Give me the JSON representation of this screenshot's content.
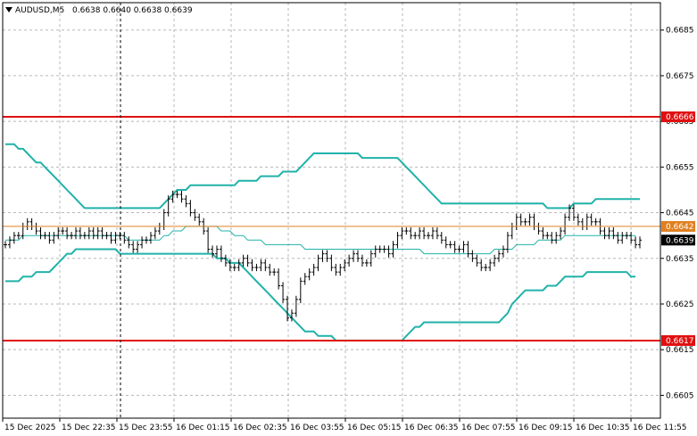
{
  "chart_data": {
    "type": "candlestick",
    "title": "AUDUSD,M5",
    "ohlc_header": "0.6638 0.6640 0.6638 0.6639",
    "y_ticks": [
      "0.6685",
      "0.6675",
      "0.6665",
      "0.6655",
      "0.6645",
      "0.6635",
      "0.6625",
      "0.6615",
      "0.6605"
    ],
    "y_tick_values": [
      0.6685,
      0.6675,
      0.6665,
      0.6655,
      0.6645,
      0.6635,
      0.6625,
      0.6615,
      0.6605
    ],
    "x_ticks": [
      "15 Dec 2025",
      "15 Dec 22:35",
      "15 Dec 23:55",
      "16 Dec 01:15",
      "16 Dec 02:35",
      "16 Dec 03:55",
      "16 Dec 05:15",
      "16 Dec 06:35",
      "16 Dec 07:55",
      "16 Dec 09:15",
      "16 Dec 10:35",
      "16 Dec 11:55"
    ],
    "ylim": [
      0.66,
      0.6691
    ],
    "grid": true,
    "levels": [
      {
        "label": "0.6666",
        "value": 0.6666,
        "color": "#e01010"
      },
      {
        "label": "0.6617",
        "value": 0.6617,
        "color": "#e01010"
      },
      {
        "label": "0.6642",
        "value": 0.6642,
        "color": "#e08020"
      }
    ],
    "current_price": {
      "label": "0.6639",
      "value": 0.6639
    },
    "colors": {
      "candles": "#000000",
      "bands": "#20b2aa",
      "support_resistance": "#e01010",
      "price_line": "#e08020"
    },
    "candles_close": [
      0.6638,
      0.6639,
      0.664,
      0.664,
      0.6642,
      0.6643,
      0.6642,
      0.6641,
      0.664,
      0.664,
      0.6639,
      0.664,
      0.6641,
      0.6641,
      0.664,
      0.664,
      0.6641,
      0.664,
      0.664,
      0.6641,
      0.664,
      0.6641,
      0.664,
      0.664,
      0.6639,
      0.664,
      0.664,
      0.6639,
      0.6638,
      0.6637,
      0.6638,
      0.6639,
      0.6639,
      0.664,
      0.6641,
      0.6642,
      0.6645,
      0.6648,
      0.6649,
      0.6649,
      0.6648,
      0.6647,
      0.6645,
      0.6644,
      0.6643,
      0.6641,
      0.6637,
      0.6636,
      0.6637,
      0.6635,
      0.6634,
      0.6633,
      0.6633,
      0.6634,
      0.6635,
      0.6634,
      0.6633,
      0.6633,
      0.6634,
      0.6633,
      0.6632,
      0.6632,
      0.6629,
      0.6626,
      0.6622,
      0.6623,
      0.6626,
      0.663,
      0.6631,
      0.6632,
      0.6633,
      0.6635,
      0.6636,
      0.6635,
      0.6633,
      0.6632,
      0.6633,
      0.6634,
      0.6635,
      0.6636,
      0.6635,
      0.6634,
      0.6634,
      0.6636,
      0.6637,
      0.6637,
      0.6637,
      0.6636,
      0.6638,
      0.664,
      0.6641,
      0.6641,
      0.664,
      0.664,
      0.6641,
      0.664,
      0.664,
      0.6641,
      0.664,
      0.6639,
      0.6638,
      0.6638,
      0.6637,
      0.6637,
      0.6638,
      0.6636,
      0.6635,
      0.6634,
      0.6633,
      0.6633,
      0.6634,
      0.6635,
      0.6636,
      0.6637,
      0.664,
      0.6642,
      0.6644,
      0.6643,
      0.6643,
      0.6644,
      0.6642,
      0.6641,
      0.664,
      0.664,
      0.6639,
      0.664,
      0.6641,
      0.6644,
      0.6646,
      0.6644,
      0.6643,
      0.6642,
      0.6644,
      0.6643,
      0.6643,
      0.6641,
      0.664,
      0.6641,
      0.664,
      0.6639,
      0.664,
      0.664,
      0.6639,
      0.6638,
      0.6639
    ],
    "upper_band": [
      0.666,
      0.666,
      0.666,
      0.6659,
      0.6659,
      0.6658,
      0.6657,
      0.6656,
      0.6656,
      0.6655,
      0.6654,
      0.6653,
      0.6652,
      0.6651,
      0.665,
      0.6649,
      0.6648,
      0.6647,
      0.6646,
      0.6646,
      0.6646,
      0.6646,
      0.6646,
      0.6646,
      0.6646,
      0.6646,
      0.6646,
      0.6646,
      0.6646,
      0.6646,
      0.6646,
      0.6646,
      0.6646,
      0.6646,
      0.6646,
      0.6646,
      0.6647,
      0.6648,
      0.6649,
      0.665,
      0.665,
      0.665,
      0.6651,
      0.6651,
      0.6651,
      0.6651,
      0.6651,
      0.6651,
      0.6651,
      0.6651,
      0.6651,
      0.6651,
      0.6651,
      0.6652,
      0.6652,
      0.6652,
      0.6652,
      0.6652,
      0.6653,
      0.6653,
      0.6653,
      0.6653,
      0.6653,
      0.6654,
      0.6654,
      0.6654,
      0.6654,
      0.6655,
      0.6656,
      0.6657,
      0.6658,
      0.6658,
      0.6658,
      0.6658,
      0.6658,
      0.6658,
      0.6658,
      0.6658,
      0.6658,
      0.6658,
      0.6658,
      0.6657,
      0.6657,
      0.6657,
      0.6657,
      0.6657,
      0.6657,
      0.6657,
      0.6657,
      0.6657,
      0.6656,
      0.6655,
      0.6654,
      0.6653,
      0.6652,
      0.6651,
      0.665,
      0.6649,
      0.6648,
      0.6647,
      0.6647,
      0.6647,
      0.6647,
      0.6647,
      0.6647,
      0.6647,
      0.6647,
      0.6647,
      0.6647,
      0.6647,
      0.6647,
      0.6647,
      0.6647,
      0.6647,
      0.6647,
      0.6647,
      0.6647,
      0.6647,
      0.6647,
      0.6647,
      0.6647,
      0.6647,
      0.6647,
      0.6646,
      0.6646,
      0.6646,
      0.6646,
      0.6646,
      0.6646,
      0.6647,
      0.6647,
      0.6647,
      0.6647,
      0.6647,
      0.6648,
      0.6648,
      0.6648,
      0.6648,
      0.6648,
      0.6648,
      0.6648,
      0.6648,
      0.6648,
      0.6648,
      0.6648
    ],
    "middle_band": [
      0.6639,
      0.6639,
      0.6639,
      0.6639,
      0.664,
      0.664,
      0.664,
      0.664,
      0.664,
      0.664,
      0.664,
      0.664,
      0.664,
      0.664,
      0.664,
      0.664,
      0.664,
      0.664,
      0.664,
      0.664,
      0.664,
      0.664,
      0.664,
      0.664,
      0.664,
      0.664,
      0.664,
      0.664,
      0.6639,
      0.6639,
      0.6639,
      0.6639,
      0.6639,
      0.6639,
      0.6639,
      0.6639,
      0.664,
      0.664,
      0.6641,
      0.6641,
      0.6641,
      0.6642,
      0.6642,
      0.6642,
      0.6642,
      0.6642,
      0.6642,
      0.6642,
      0.6642,
      0.6641,
      0.6641,
      0.6641,
      0.664,
      0.664,
      0.664,
      0.6639,
      0.6639,
      0.6639,
      0.6639,
      0.6638,
      0.6638,
      0.6638,
      0.6638,
      0.6638,
      0.6638,
      0.6638,
      0.6638,
      0.6638,
      0.6637,
      0.6637,
      0.6637,
      0.6637,
      0.6637,
      0.6637,
      0.6637,
      0.6637,
      0.6637,
      0.6637,
      0.6637,
      0.6637,
      0.6637,
      0.6637,
      0.6637,
      0.6637,
      0.6637,
      0.6637,
      0.6637,
      0.6637,
      0.6637,
      0.6637,
      0.6637,
      0.6637,
      0.6637,
      0.6637,
      0.6637,
      0.6636,
      0.6636,
      0.6636,
      0.6636,
      0.6636,
      0.6636,
      0.6636,
      0.6636,
      0.6636,
      0.6636,
      0.6636,
      0.6636,
      0.6636,
      0.6636,
      0.6636,
      0.6636,
      0.6637,
      0.6637,
      0.6637,
      0.6637,
      0.6637,
      0.6638,
      0.6638,
      0.6638,
      0.6638,
      0.6638,
      0.6639,
      0.6639,
      0.6639,
      0.6639,
      0.6639,
      0.6639,
      0.664,
      0.664,
      0.664,
      0.664,
      0.664,
      0.664,
      0.664,
      0.664,
      0.664,
      0.664,
      0.664,
      0.664,
      0.664,
      0.664,
      0.664,
      0.664,
      0.664
    ],
    "lower_band": [
      0.663,
      0.663,
      0.663,
      0.663,
      0.6631,
      0.6631,
      0.6631,
      0.6632,
      0.6632,
      0.6632,
      0.6632,
      0.6633,
      0.6634,
      0.6635,
      0.6636,
      0.6636,
      0.6637,
      0.6637,
      0.6637,
      0.6637,
      0.6637,
      0.6637,
      0.6637,
      0.6637,
      0.6637,
      0.6637,
      0.6636,
      0.6636,
      0.6636,
      0.6636,
      0.6636,
      0.6636,
      0.6636,
      0.6636,
      0.6636,
      0.6636,
      0.6636,
      0.6636,
      0.6636,
      0.6636,
      0.6636,
      0.6636,
      0.6636,
      0.6636,
      0.6636,
      0.6636,
      0.6636,
      0.6636,
      0.6635,
      0.6635,
      0.6635,
      0.6634,
      0.6634,
      0.6634,
      0.6633,
      0.6632,
      0.6631,
      0.663,
      0.6629,
      0.6628,
      0.6627,
      0.6626,
      0.6625,
      0.6624,
      0.6623,
      0.6622,
      0.6621,
      0.662,
      0.6619,
      0.6619,
      0.6619,
      0.6618,
      0.6618,
      0.6618,
      0.6618,
      0.6617,
      0.6617,
      0.6617,
      0.6617,
      0.6617,
      0.6617,
      0.6617,
      0.6617,
      0.6617,
      0.6617,
      0.6617,
      0.6617,
      0.6617,
      0.6617,
      0.6617,
      0.6617,
      0.6618,
      0.6619,
      0.662,
      0.662,
      0.6621,
      0.6621,
      0.6621,
      0.6621,
      0.6621,
      0.6621,
      0.6621,
      0.6621,
      0.6621,
      0.6621,
      0.6621,
      0.6621,
      0.6621,
      0.6621,
      0.6621,
      0.6621,
      0.6621,
      0.6621,
      0.6622,
      0.6623,
      0.6625,
      0.6626,
      0.6627,
      0.6628,
      0.6628,
      0.6628,
      0.6628,
      0.6628,
      0.6629,
      0.6629,
      0.6629,
      0.663,
      0.6631,
      0.6631,
      0.6631,
      0.6631,
      0.6631,
      0.6632,
      0.6632,
      0.6632,
      0.6632,
      0.6632,
      0.6632,
      0.6632,
      0.6632,
      0.6632,
      0.6632,
      0.6631,
      0.6631
    ]
  }
}
